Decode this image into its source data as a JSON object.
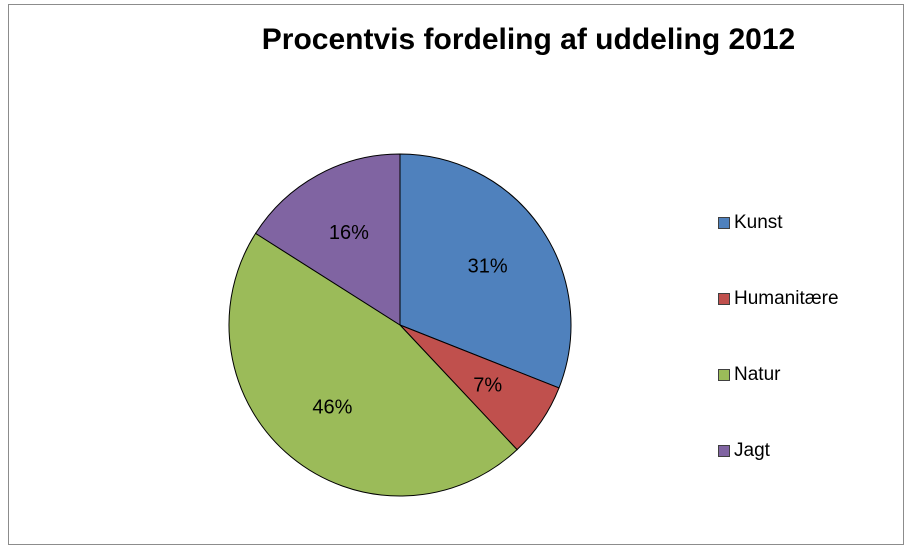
{
  "chart_data": {
    "type": "pie",
    "title": "Procentvis fordeling af uddeling 2012",
    "slices": [
      {
        "name": "Kunst",
        "value": 31,
        "label": "31%",
        "color": "#4f81bd"
      },
      {
        "name": "Humanitære",
        "value": 7,
        "label": "7%",
        "color": "#c0504d"
      },
      {
        "name": "Natur",
        "value": 46,
        "label": "46%",
        "color": "#9bbb59"
      },
      {
        "name": "Jagt",
        "value": 16,
        "label": "16%",
        "color": "#8064a2"
      }
    ],
    "legend_position": "right"
  }
}
